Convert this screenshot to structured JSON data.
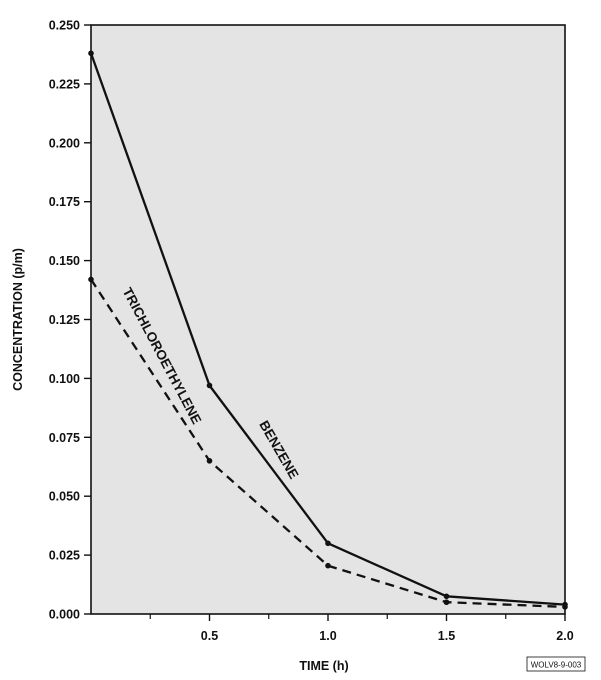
{
  "chart_data": {
    "type": "line",
    "xlabel": "TIME (h)",
    "ylabel": "CONCENTRATION (p/m)",
    "xlim": [
      0,
      2.0
    ],
    "ylim": [
      0,
      0.25
    ],
    "x_ticks": [
      0.5,
      1.0,
      1.5,
      2.0
    ],
    "x_tick_labels": [
      "0.5",
      "1.0",
      "1.5",
      "2.0"
    ],
    "x_minor_ticks": [
      0.25,
      0.75,
      1.25,
      1.75
    ],
    "y_ticks": [
      0,
      0.025,
      0.05,
      0.075,
      0.1,
      0.125,
      0.15,
      0.175,
      0.2,
      0.225,
      0.25
    ],
    "y_tick_labels": [
      "0.000",
      "0.025",
      "0.050",
      "0.075",
      "0.100",
      "0.125",
      "0.150",
      "0.175",
      "0.200",
      "0.225",
      "0.250"
    ],
    "grid": false,
    "plot_background": "#e4e4e4",
    "series": [
      {
        "name": "BENZENE",
        "line_style": "solid",
        "color": "#111111",
        "x": [
          0,
          0.5,
          1.0,
          1.5,
          2.0
        ],
        "values": [
          0.238,
          0.097,
          0.03,
          0.0075,
          0.004
        ]
      },
      {
        "name": "TRICHLOROETHYLENE",
        "line_style": "dashed",
        "color": "#111111",
        "x": [
          0,
          0.5,
          1.0,
          1.5,
          2.0
        ],
        "values": [
          0.142,
          0.065,
          0.0205,
          0.005,
          0.003
        ]
      }
    ]
  },
  "figure_id": "WOLV8-9-003"
}
